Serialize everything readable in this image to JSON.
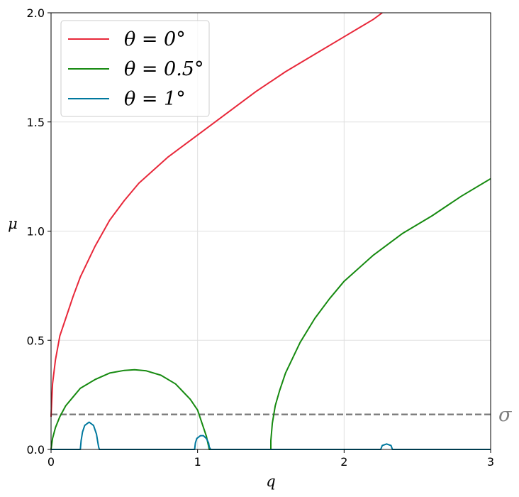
{
  "chart_data": {
    "type": "line",
    "xlabel": "q",
    "ylabel": "μ",
    "xlim": [
      0,
      3
    ],
    "ylim": [
      0,
      2.0
    ],
    "xticks": [
      "0",
      "1",
      "2",
      "3"
    ],
    "yticks": [
      "0.0",
      "0.5",
      "1.0",
      "1.5",
      "2.0"
    ],
    "grid": true,
    "legend_position": "top-left",
    "series": [
      {
        "name": "θ = 0°",
        "color": "#e8283a",
        "x": [
          0,
          0.01,
          0.03,
          0.06,
          0.1,
          0.15,
          0.2,
          0.3,
          0.4,
          0.5,
          0.6,
          0.8,
          1.0,
          1.2,
          1.4,
          1.6,
          1.8,
          2.0,
          2.2,
          2.26
        ],
        "y": [
          0.15,
          0.3,
          0.41,
          0.52,
          0.6,
          0.7,
          0.79,
          0.93,
          1.05,
          1.14,
          1.22,
          1.34,
          1.44,
          1.54,
          1.64,
          1.73,
          1.81,
          1.89,
          1.97,
          2.0
        ]
      },
      {
        "name": "θ = 0.5°",
        "color": "#168a10",
        "x": [
          0,
          0.01,
          0.03,
          0.06,
          0.1,
          0.15,
          0.2,
          0.3,
          0.4,
          0.5,
          0.57,
          0.65,
          0.75,
          0.85,
          0.95,
          1.0,
          1.03,
          1.06,
          1.08,
          1.5,
          1.5,
          1.51,
          1.53,
          1.56,
          1.6,
          1.7,
          1.8,
          1.9,
          2.0,
          2.2,
          2.4,
          2.6,
          2.8,
          3.0
        ],
        "y": [
          0.0,
          0.05,
          0.1,
          0.15,
          0.2,
          0.24,
          0.28,
          0.32,
          0.35,
          0.362,
          0.365,
          0.36,
          0.34,
          0.3,
          0.23,
          0.18,
          0.12,
          0.06,
          0.0,
          0.0,
          0.04,
          0.12,
          0.2,
          0.27,
          0.35,
          0.49,
          0.6,
          0.69,
          0.77,
          0.89,
          0.99,
          1.07,
          1.16,
          1.24
        ]
      },
      {
        "name": "θ = 1°",
        "color": "#00789e",
        "x": [
          0,
          0.2,
          0.205,
          0.215,
          0.23,
          0.26,
          0.29,
          0.31,
          0.32,
          0.325,
          0.33,
          0.98,
          0.985,
          0.995,
          1.02,
          1.04,
          1.06,
          1.075,
          1.08,
          1.09,
          2.25,
          2.26,
          2.29,
          2.32,
          2.33,
          3.0
        ],
        "y": [
          0,
          0,
          0.04,
          0.08,
          0.11,
          0.125,
          0.11,
          0.07,
          0.03,
          0.01,
          0,
          0,
          0.03,
          0.05,
          0.063,
          0.063,
          0.05,
          0.03,
          0.01,
          0,
          0,
          0.018,
          0.025,
          0.018,
          0,
          0
        ]
      }
    ],
    "reference_lines": [
      {
        "name": "σ",
        "y": 0.16,
        "style": "dashed",
        "color": "#808080"
      }
    ]
  }
}
